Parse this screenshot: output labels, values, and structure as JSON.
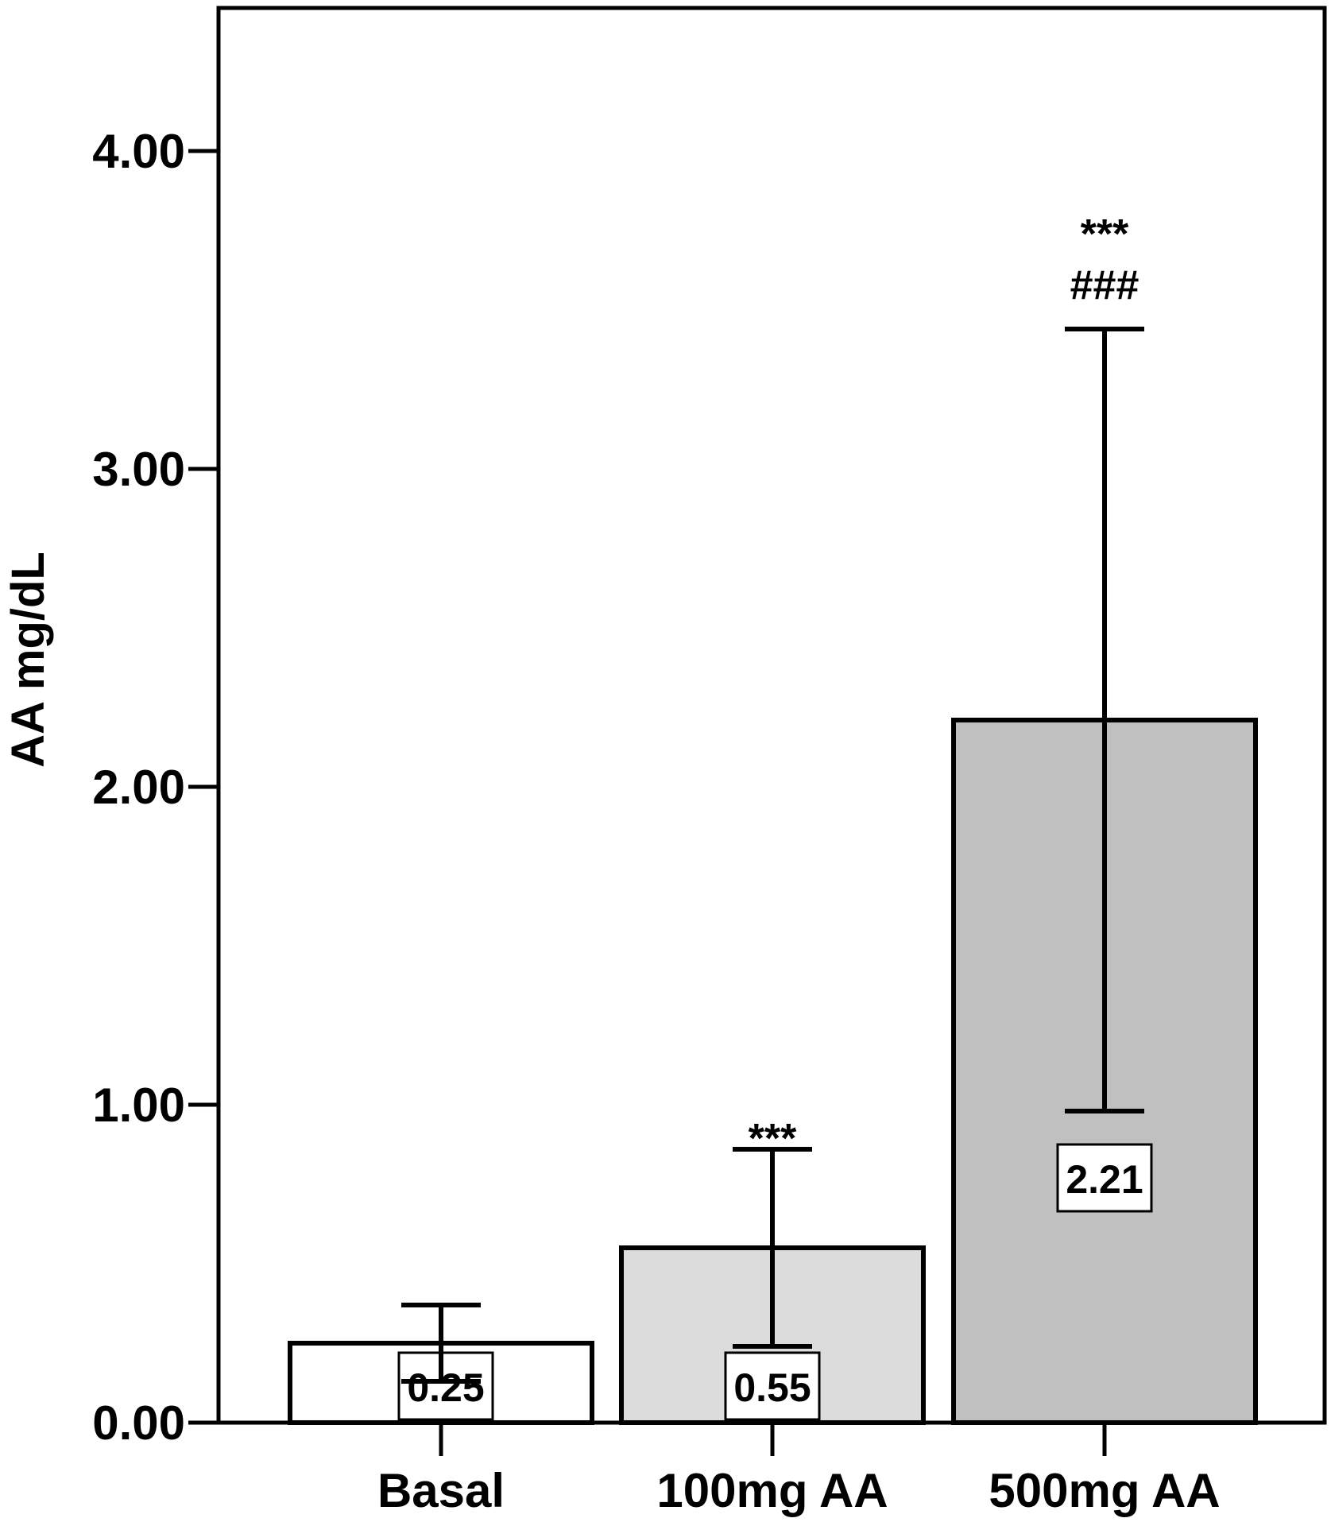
{
  "chart_data": {
    "type": "bar",
    "categories": [
      "Basal",
      "100mg AA",
      "500mg AA"
    ],
    "values": [
      0.25,
      0.55,
      2.21
    ],
    "error_upper": [
      0.37,
      0.86,
      3.44
    ],
    "error_lower": [
      0.13,
      0.24,
      0.98
    ],
    "data_labels": [
      "0.25",
      "0.55",
      "2.21"
    ],
    "annotations": [
      [],
      [
        "***"
      ],
      [
        "***",
        "###"
      ]
    ],
    "bar_colors": [
      "#ffffff",
      "#dcdcdc",
      "#c0c0c0"
    ],
    "xlabel": "",
    "ylabel": "AA mg/dL",
    "ylim": [
      0,
      4.45
    ],
    "yticks": [
      0,
      1,
      2,
      3,
      4
    ],
    "ytick_labels": [
      "0.00",
      "1.00",
      "2.00",
      "3.00",
      "4.00"
    ],
    "grid": false,
    "legend": "none"
  }
}
